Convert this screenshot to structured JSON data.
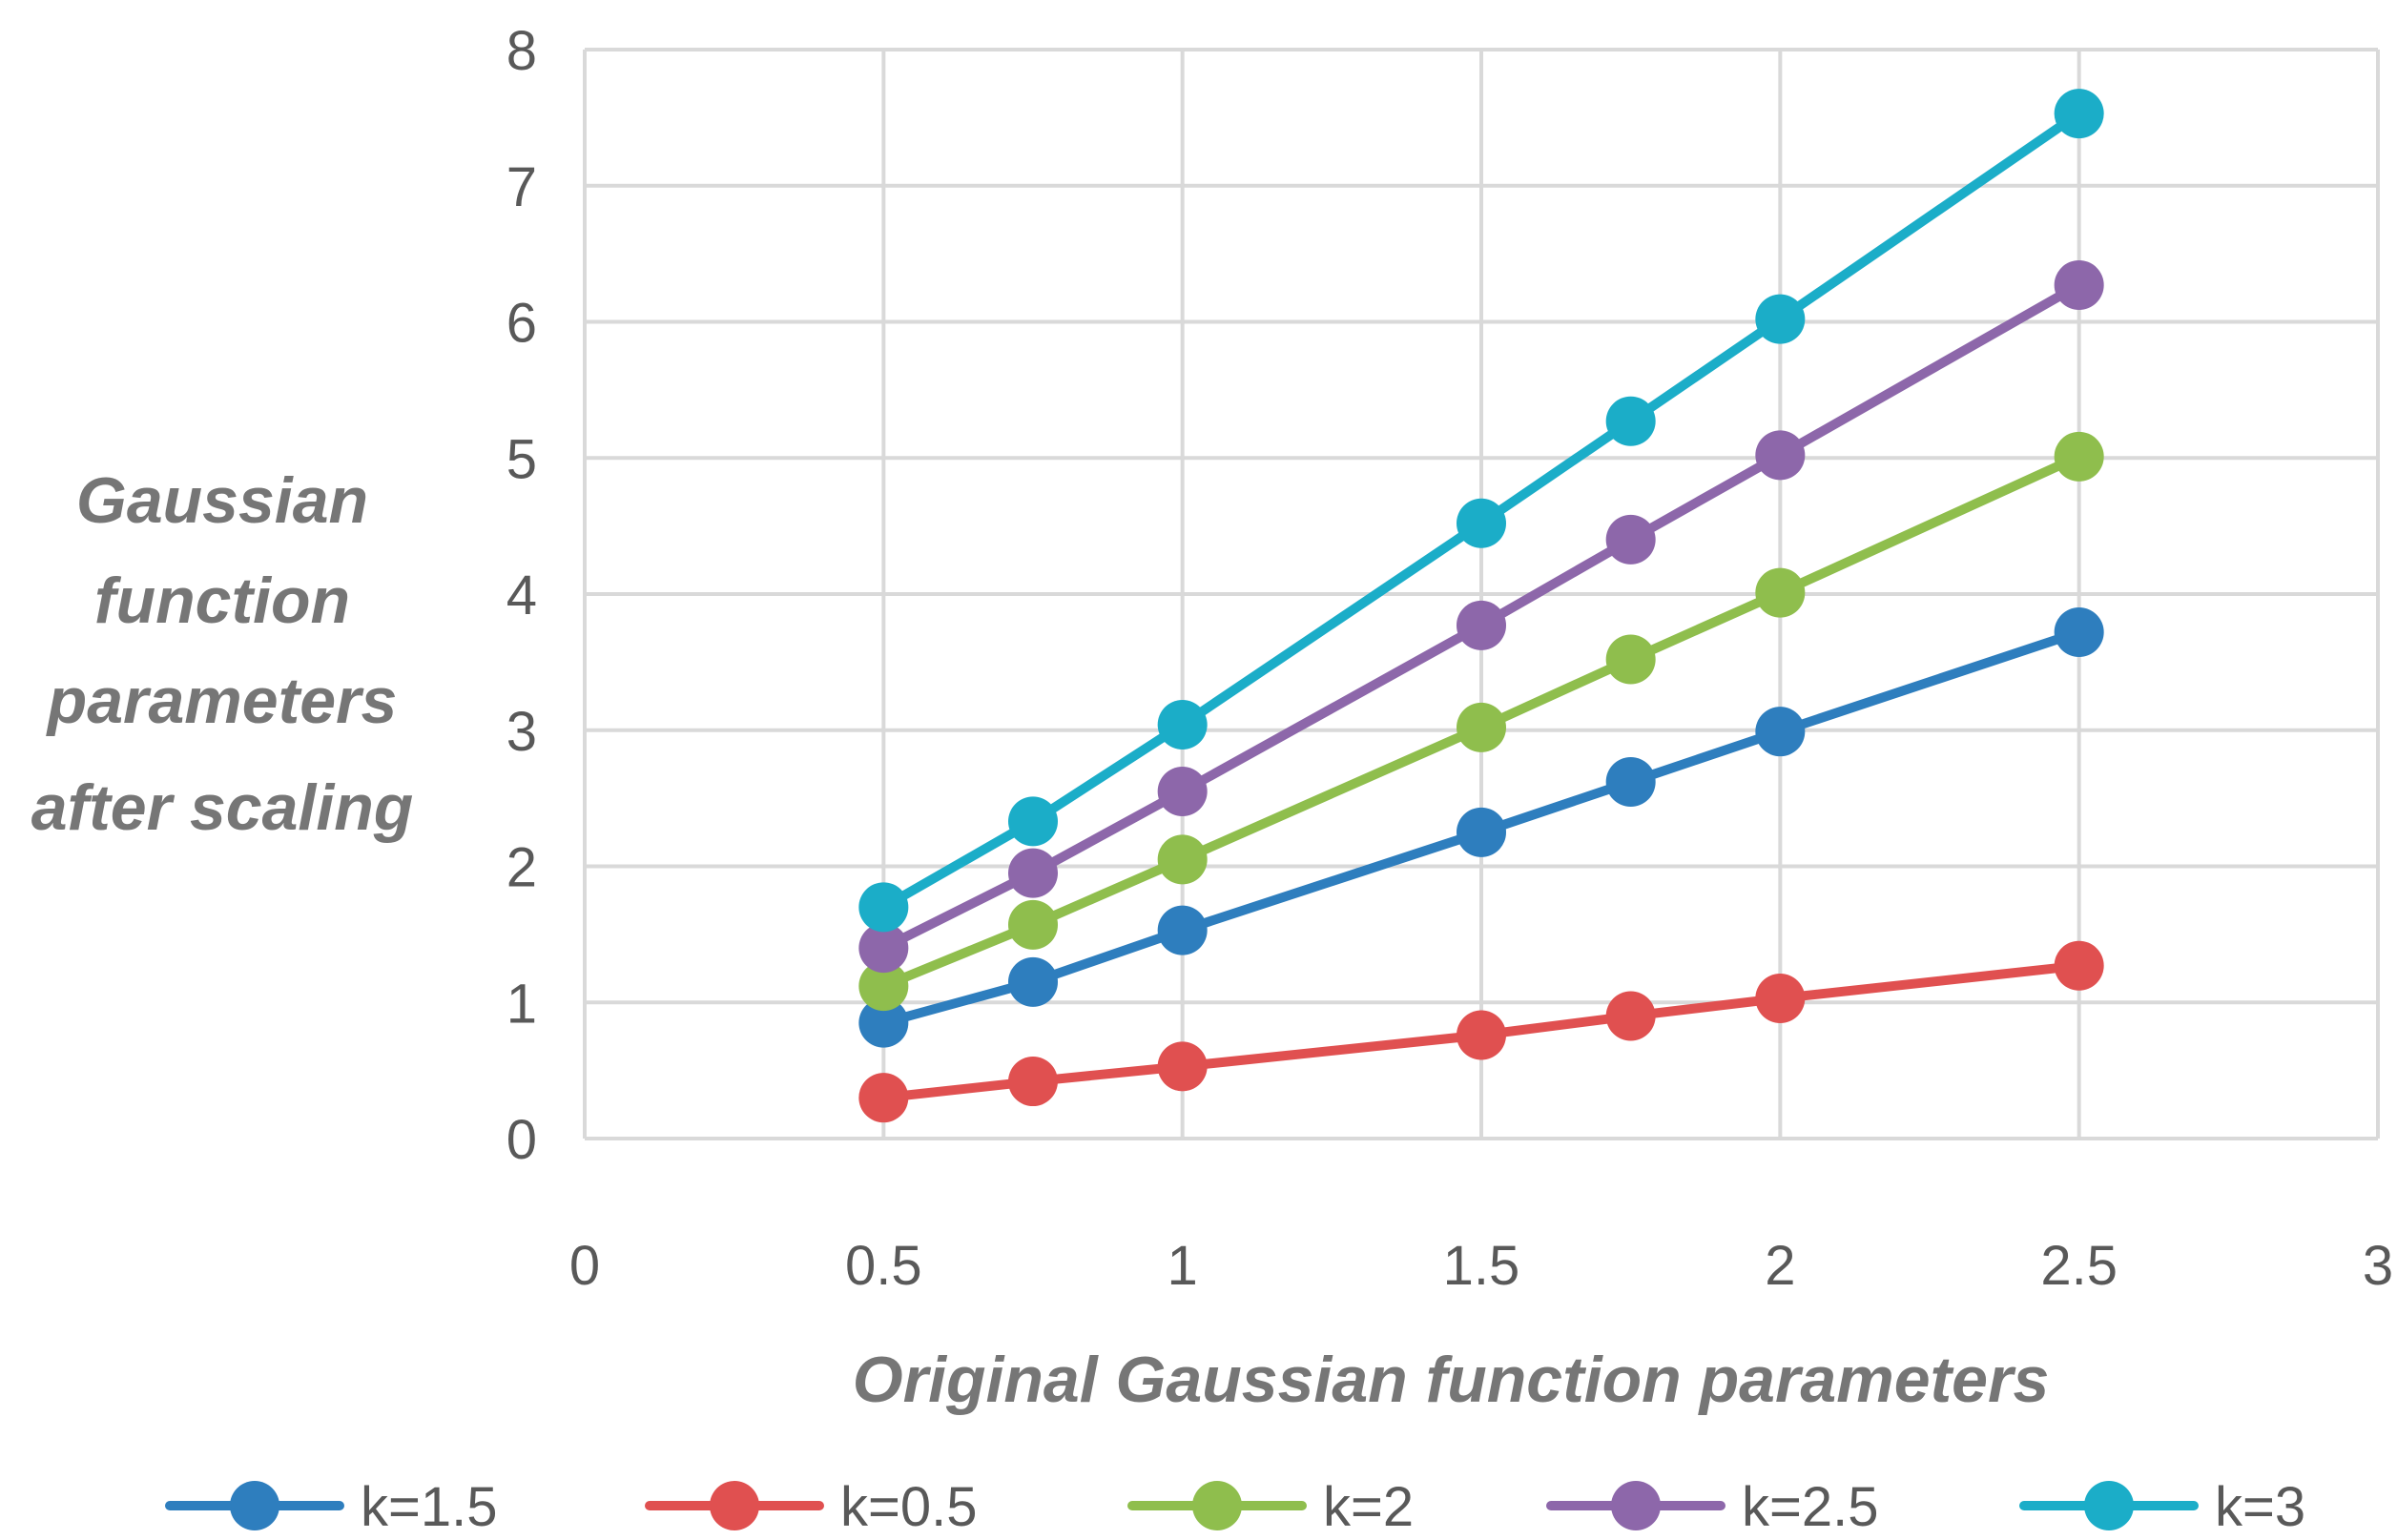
{
  "chart_data": {
    "type": "line",
    "title": "",
    "xlabel": "Original Gaussian function parameters",
    "ylabel_lines": [
      "Gaussian",
      "function",
      "parameters",
      "after scaling"
    ],
    "xlim": [
      0,
      3
    ],
    "ylim": [
      0,
      8
    ],
    "x_ticks": [
      "0",
      "0.5",
      "1",
      "1.5",
      "2",
      "2.5",
      "3"
    ],
    "y_ticks": [
      "0",
      "1",
      "2",
      "3",
      "4",
      "5",
      "6",
      "7",
      "8"
    ],
    "grid": true,
    "legend_position": "bottom",
    "x": [
      0.5,
      0.75,
      1,
      1.5,
      1.75,
      2,
      2.5
    ],
    "series": [
      {
        "name": "k=1.5",
        "color": "#2e7ebe",
        "values": [
          0.85,
          1.15,
          1.53,
          2.25,
          2.62,
          2.99,
          3.72
        ]
      },
      {
        "name": "k=0.5",
        "color": "#e05050",
        "values": [
          0.3,
          0.42,
          0.53,
          0.76,
          0.9,
          1.03,
          1.27
        ]
      },
      {
        "name": "k=2",
        "color": "#8fbe4d",
        "values": [
          1.12,
          1.57,
          2.05,
          3.02,
          3.52,
          4.01,
          5.01
        ]
      },
      {
        "name": "k=2.5",
        "color": "#8d67aa",
        "values": [
          1.4,
          1.95,
          2.55,
          3.77,
          4.4,
          5.02,
          6.27
        ]
      },
      {
        "name": "k=3",
        "color": "#1badc8",
        "values": [
          1.7,
          2.33,
          3.04,
          4.52,
          5.27,
          6.02,
          7.53
        ]
      }
    ]
  }
}
